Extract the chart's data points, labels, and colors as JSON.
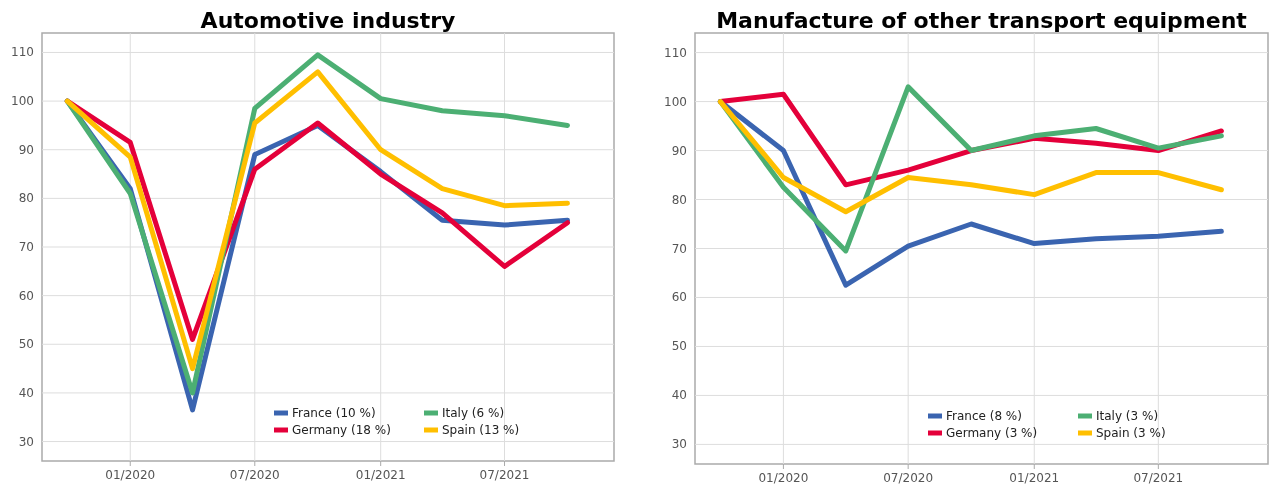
{
  "chart_data": [
    {
      "type": "line",
      "title": "Automotive industry",
      "x": [
        "2019-10",
        "2020-01",
        "2020-04",
        "2020-07",
        "2020-10",
        "2021-01",
        "2021-04",
        "2021-07",
        "2021-10"
      ],
      "series": [
        {
          "name": "France (10 %)",
          "color": "#3a64b0",
          "values": [
            100,
            82,
            36.5,
            89,
            95,
            85.5,
            75.5,
            74.5,
            75.5
          ]
        },
        {
          "name": "Germany (18 %)",
          "color": "#e4003a",
          "values": [
            100,
            91.5,
            51,
            86,
            95.5,
            85,
            77,
            66,
            75
          ]
        },
        {
          "name": "Italy (6 %)",
          "color": "#4caf73",
          "values": [
            100,
            81,
            40,
            98.5,
            109.5,
            100.5,
            98,
            97,
            95
          ]
        },
        {
          "name": "Spain (13 %)",
          "color": "#ffbf00",
          "values": [
            100,
            88.5,
            45,
            95.5,
            106,
            90,
            82,
            78.5,
            79
          ]
        }
      ],
      "xlim": [
        "2019-08-25",
        "2021-12-08"
      ],
      "xticks": [
        {
          "value": "2020-01",
          "label": "01/2020"
        },
        {
          "value": "2020-07",
          "label": "07/2020"
        },
        {
          "value": "2021-01",
          "label": "01/2021"
        },
        {
          "value": "2021-07",
          "label": "07/2021"
        }
      ],
      "ylim": [
        26,
        114
      ],
      "yticks": [
        30,
        40,
        50,
        60,
        70,
        80,
        90,
        100,
        110
      ],
      "grid": true,
      "legend": "bottom right"
    },
    {
      "type": "line",
      "title": "Manufacture of other transport equipment",
      "x": [
        "2019-10",
        "2020-01",
        "2020-04",
        "2020-07",
        "2020-10",
        "2021-01",
        "2021-04",
        "2021-07",
        "2021-10"
      ],
      "series": [
        {
          "name": "France (8 %)",
          "color": "#3a64b0",
          "values": [
            100,
            90,
            62.5,
            70.5,
            75,
            71,
            72,
            72.5,
            73.5
          ]
        },
        {
          "name": "Germany (3 %)",
          "color": "#e4003a",
          "values": [
            100,
            101.5,
            83,
            86,
            90,
            92.5,
            91.5,
            90,
            94
          ]
        },
        {
          "name": "Italy (3 %)",
          "color": "#4caf73",
          "values": [
            100,
            82.5,
            69.5,
            103,
            90,
            93,
            94.5,
            90.5,
            93
          ]
        },
        {
          "name": "Spain (3 %)",
          "color": "#ffbf00",
          "values": [
            100,
            84.5,
            77.5,
            84.5,
            83,
            81,
            85.5,
            85.5,
            82
          ]
        }
      ],
      "xlim": [
        "2019-08-25",
        "2021-12-08"
      ],
      "xticks": [
        {
          "value": "2020-01",
          "label": "01/2020"
        },
        {
          "value": "2020-07",
          "label": "07/2020"
        },
        {
          "value": "2021-01",
          "label": "01/2021"
        },
        {
          "value": "2021-07",
          "label": "07/2021"
        }
      ],
      "ylim": [
        26,
        114
      ],
      "yticks": [
        30,
        40,
        50,
        60,
        70,
        80,
        90,
        100,
        110
      ],
      "grid": true,
      "legend": "bottom right"
    }
  ]
}
